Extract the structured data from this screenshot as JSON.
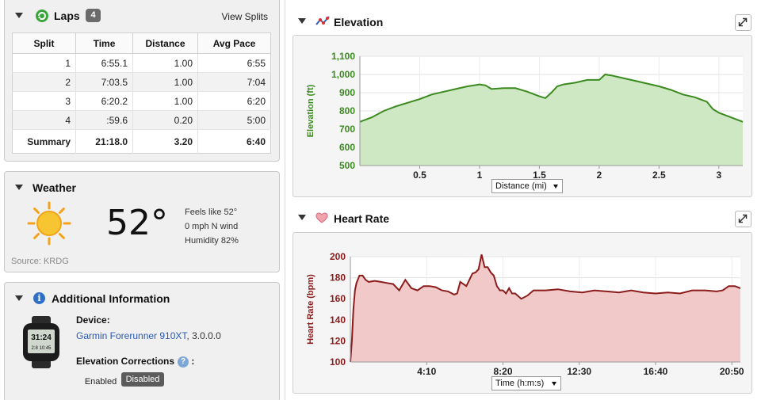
{
  "laps": {
    "title": "Laps",
    "count": "4",
    "view_splits": "View Splits",
    "columns": [
      "Split",
      "Time",
      "Distance",
      "Avg Pace"
    ],
    "rows": [
      [
        "1",
        "6:55.1",
        "1.00",
        "6:55"
      ],
      [
        "2",
        "7:03.5",
        "1.00",
        "7:04"
      ],
      [
        "3",
        "6:20.2",
        "1.00",
        "6:20"
      ],
      [
        "4",
        ":59.6",
        "0.20",
        "5:00"
      ]
    ],
    "summary": [
      "Summary",
      "21:18.0",
      "3.20",
      "6:40"
    ]
  },
  "weather": {
    "title": "Weather",
    "temperature": "52°",
    "feels_like": "Feels like 52°",
    "wind": "0 mph N wind",
    "humidity": "Humidity 82%",
    "source": "Source: KRDG"
  },
  "additional_info": {
    "title": "Additional Information",
    "device_label": "Device:",
    "device_name": "Garmin Forerunner 910XT",
    "device_version": ", 3.0.0.0",
    "elevation_corrections_label": "Elevation Corrections",
    "colon": ":",
    "enabled_label": "Enabled",
    "disabled_label": "Disabled",
    "watch_time": "31:24",
    "watch_detail": "2:8 10:45"
  },
  "elevation_panel": {
    "title": "Elevation",
    "x_select": "Distance (mi)",
    "color": "#3b8a1f",
    "fill": "#cfe8c4"
  },
  "heart_rate_panel": {
    "title": "Heart Rate",
    "x_select": "Time (h:m:s)",
    "color": "#8b1c1c",
    "fill": "#f1c9c9"
  },
  "chart_data": [
    {
      "type": "area",
      "title": "Elevation",
      "xlabel": "Distance (mi)",
      "ylabel": "Elevation (ft)",
      "xlim": [
        0,
        3.2
      ],
      "ylim": [
        500,
        1100
      ],
      "x_ticks": [
        "0.5",
        "1",
        "1.5",
        "2",
        "2.5",
        "3"
      ],
      "x_tick_values": [
        0.5,
        1,
        1.5,
        2,
        2.5,
        3
      ],
      "y_ticks": [
        "500",
        "600",
        "700",
        "800",
        "900",
        "1,000",
        "1,100"
      ],
      "y_tick_values": [
        500,
        600,
        700,
        800,
        900,
        1000,
        1100
      ],
      "grid": true,
      "x": [
        0,
        0.1,
        0.2,
        0.3,
        0.4,
        0.5,
        0.6,
        0.7,
        0.8,
        0.9,
        1.0,
        1.05,
        1.1,
        1.2,
        1.3,
        1.4,
        1.5,
        1.55,
        1.6,
        1.65,
        1.7,
        1.8,
        1.9,
        2.0,
        2.05,
        2.1,
        2.2,
        2.3,
        2.4,
        2.5,
        2.6,
        2.7,
        2.8,
        2.9,
        2.95,
        3.0,
        3.1,
        3.2
      ],
      "values": [
        740,
        765,
        800,
        825,
        845,
        865,
        890,
        905,
        920,
        935,
        945,
        940,
        920,
        925,
        925,
        905,
        880,
        870,
        900,
        935,
        945,
        955,
        970,
        970,
        1000,
        995,
        980,
        965,
        950,
        935,
        915,
        890,
        875,
        850,
        810,
        790,
        765,
        740
      ]
    },
    {
      "type": "area",
      "title": "Heart Rate",
      "xlabel": "Time (h:m:s)",
      "ylabel": "Heart Rate (bpm)",
      "xlim": [
        0,
        1278
      ],
      "ylim": [
        100,
        200
      ],
      "x_ticks": [
        "4:10",
        "8:20",
        "12:30",
        "16:40",
        "20:50"
      ],
      "x_tick_values": [
        250,
        500,
        750,
        1000,
        1250
      ],
      "y_ticks": [
        "100",
        "120",
        "140",
        "160",
        "180",
        "200"
      ],
      "y_tick_values": [
        100,
        120,
        140,
        160,
        180,
        200
      ],
      "grid": true,
      "x": [
        0,
        5,
        10,
        15,
        20,
        30,
        40,
        50,
        60,
        80,
        100,
        120,
        140,
        160,
        180,
        200,
        220,
        240,
        260,
        280,
        300,
        320,
        340,
        350,
        360,
        380,
        400,
        410,
        420,
        430,
        440,
        450,
        460,
        470,
        480,
        490,
        500,
        510,
        520,
        530,
        540,
        560,
        580,
        600,
        640,
        680,
        720,
        760,
        800,
        840,
        880,
        920,
        960,
        1000,
        1040,
        1080,
        1120,
        1160,
        1200,
        1220,
        1240,
        1260,
        1278
      ],
      "values": [
        100,
        120,
        150,
        168,
        175,
        182,
        182,
        178,
        176,
        177,
        176,
        175,
        174,
        168,
        178,
        170,
        168,
        172,
        172,
        171,
        168,
        167,
        164,
        165,
        176,
        172,
        184,
        185,
        188,
        202,
        190,
        190,
        185,
        182,
        172,
        168,
        168,
        165,
        170,
        165,
        165,
        160,
        163,
        168,
        168,
        169,
        167,
        166,
        168,
        167,
        166,
        168,
        166,
        165,
        166,
        165,
        168,
        168,
        167,
        168,
        172,
        172,
        170
      ]
    }
  ]
}
